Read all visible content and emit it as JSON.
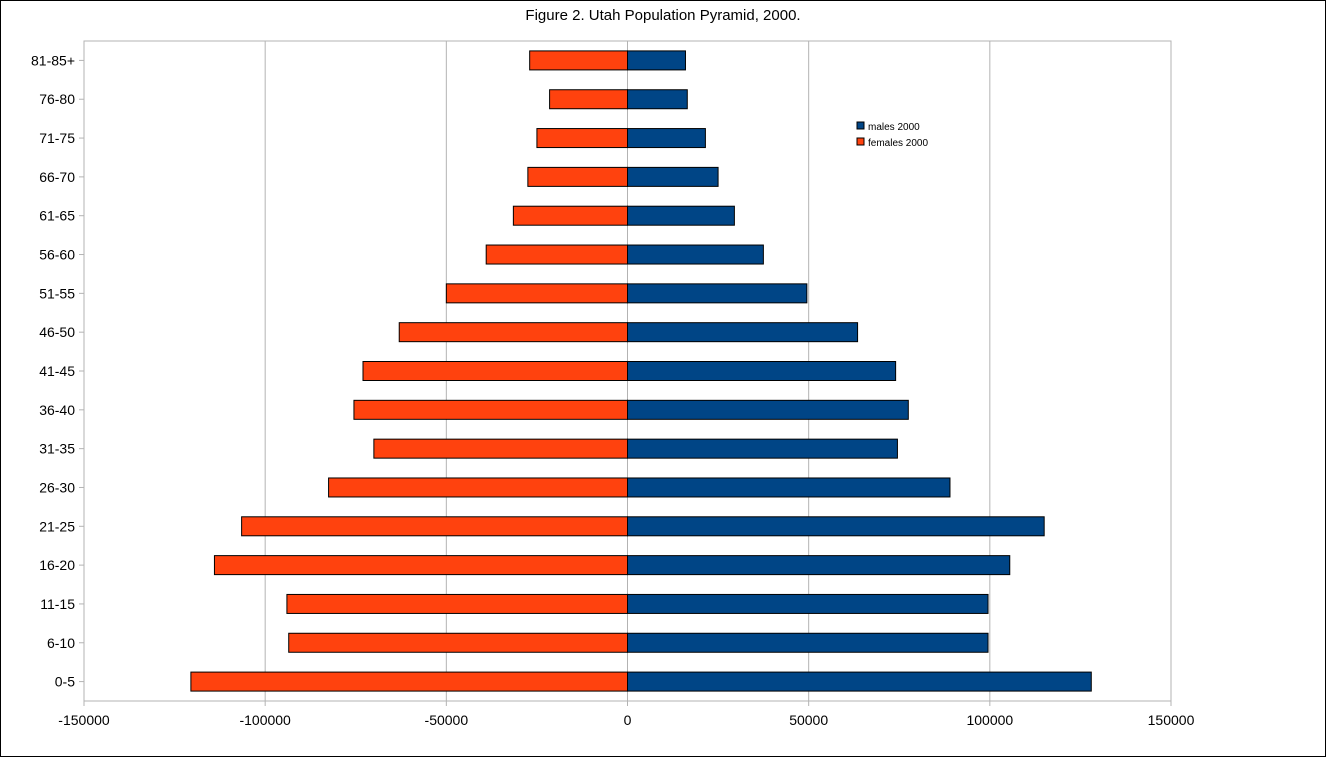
{
  "chart_data": {
    "type": "bar",
    "orientation": "horizontal",
    "title": "Figure 2. Utah Population Pyramid, 2000.",
    "xlabel": "",
    "ylabel": "",
    "categories": [
      "0-5",
      "6-10",
      "11-15",
      "16-20",
      "21-25",
      "26-30",
      "31-35",
      "36-40",
      "41-45",
      "46-50",
      "51-55",
      "56-60",
      "61-65",
      "66-70",
      "71-75",
      "76-80",
      "81-85+"
    ],
    "series": [
      {
        "name": "males 2000",
        "color": "#004586",
        "values": [
          128000,
          99500,
          99500,
          105500,
          115000,
          89000,
          74500,
          77500,
          74000,
          63500,
          49500,
          37500,
          29500,
          25000,
          21500,
          16500,
          16000
        ]
      },
      {
        "name": "females 2000",
        "color": "#ff420e",
        "values": [
          -120500,
          -93500,
          -94000,
          -114000,
          -106500,
          -82500,
          -70000,
          -75500,
          -73000,
          -63000,
          -50000,
          -39000,
          -31500,
          -27500,
          -25000,
          -21500,
          -27000
        ]
      }
    ],
    "xlim": [
      -150000,
      150000
    ],
    "xticks": [
      "-150000",
      "-100000",
      "-50000",
      "0",
      "50000",
      "100000",
      "150000"
    ],
    "grid": "vertical",
    "legend_position": "top-right"
  }
}
